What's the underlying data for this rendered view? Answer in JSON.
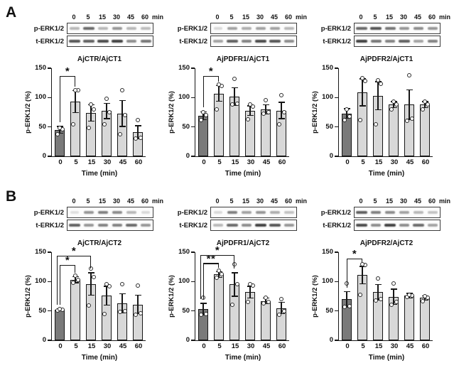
{
  "figure": {
    "panels": [
      {
        "label": "A",
        "figures": [
          {
            "chart_index": 0,
            "blot": {
              "header": [
                "0",
                "5",
                "15",
                "30",
                "45",
                "60"
              ],
              "unit": "min",
              "rows": [
                {
                  "label": "p-ERK1/2",
                  "bands": [
                    0.3,
                    0.65,
                    0.3,
                    0.45,
                    0.3,
                    0.28
                  ]
                },
                {
                  "label": "t-ERK1/2",
                  "bands": [
                    0.75,
                    0.7,
                    0.8,
                    0.85,
                    0.5,
                    0.6
                  ]
                }
              ]
            }
          },
          {
            "chart_index": 1,
            "blot": {
              "header": [
                "0",
                "5",
                "15",
                "30",
                "45",
                "60"
              ],
              "unit": "min",
              "rows": [
                {
                  "label": "p-ERK1/2",
                  "bands": [
                    0.15,
                    0.4,
                    0.35,
                    0.4,
                    0.4,
                    0.3
                  ]
                },
                {
                  "label": "t-ERK1/2",
                  "bands": [
                    0.4,
                    0.7,
                    0.55,
                    0.8,
                    0.75,
                    0.5
                  ]
                }
              ]
            }
          },
          {
            "chart_index": 2,
            "blot": {
              "header": [
                "0",
                "5",
                "15",
                "30",
                "45",
                "60"
              ],
              "unit": "min",
              "rows": [
                {
                  "label": "p-ERK1/2",
                  "bands": [
                    0.65,
                    0.75,
                    0.6,
                    0.45,
                    0.5,
                    0.45
                  ]
                },
                {
                  "label": "t-ERK1/2",
                  "bands": [
                    0.85,
                    0.6,
                    0.55,
                    0.7,
                    0.4,
                    0.55
                  ]
                }
              ]
            }
          }
        ]
      },
      {
        "label": "B",
        "figures": [
          {
            "chart_index": 3,
            "blot": {
              "header": [
                "0",
                "5",
                "15",
                "30",
                "45",
                "60"
              ],
              "unit": "min",
              "rows": [
                {
                  "label": "p-ERK1/2",
                  "bands": [
                    0.12,
                    0.45,
                    0.55,
                    0.5,
                    0.3,
                    0.15
                  ]
                },
                {
                  "label": "t-ERK1/2",
                  "bands": [
                    0.7,
                    0.45,
                    0.55,
                    0.55,
                    0.65,
                    0.45
                  ]
                }
              ]
            }
          },
          {
            "chart_index": 4,
            "blot": {
              "header": [
                "0",
                "5",
                "15",
                "30",
                "45",
                "60"
              ],
              "unit": "min",
              "rows": [
                {
                  "label": "p-ERK1/2",
                  "bands": [
                    0.15,
                    0.55,
                    0.4,
                    0.45,
                    0.35,
                    0.25
                  ]
                },
                {
                  "label": "t-ERK1/2",
                  "bands": [
                    0.3,
                    0.65,
                    0.5,
                    0.85,
                    0.75,
                    0.45
                  ]
                }
              ]
            }
          },
          {
            "chart_index": 5,
            "blot": {
              "header": [
                "0",
                "5",
                "15",
                "30",
                "45",
                "60"
              ],
              "unit": "min",
              "rows": [
                {
                  "label": "p-ERK1/2",
                  "bands": [
                    0.7,
                    0.55,
                    0.5,
                    0.4,
                    0.3,
                    0.25
                  ]
                },
                {
                  "label": "t-ERK1/2",
                  "bands": [
                    0.8,
                    0.5,
                    0.85,
                    0.5,
                    0.65,
                    0.4
                  ]
                }
              ]
            }
          }
        ]
      }
    ]
  },
  "style": {
    "dark_bar_color": "#7a7a7a",
    "light_bar_color": "#d8d8d8",
    "axis_color": "#161616",
    "band_color": "#1d1d1d"
  },
  "chart_data": [
    {
      "type": "bar",
      "title": "AjCTR/AjCT1",
      "categories": [
        "0",
        "5",
        "15",
        "30",
        "45",
        "60"
      ],
      "values": [
        45,
        93,
        74,
        77,
        73,
        41
      ],
      "errors": [
        6,
        19,
        14,
        13,
        22,
        11
      ],
      "points": [
        [
          38,
          46,
          48
        ],
        [
          54,
          112,
          113
        ],
        [
          48,
          80,
          88
        ],
        [
          55,
          75,
          98
        ],
        [
          38,
          70,
          112
        ],
        [
          30,
          32,
          62
        ]
      ],
      "significance": [
        {
          "from": 0,
          "to": 1,
          "label": "*",
          "y": 135
        }
      ],
      "ylabel": "p-ERK1/2 (%)",
      "xlabel": "Time (min)",
      "ylim": [
        0,
        150
      ],
      "yticks": [
        0,
        50,
        100,
        150
      ],
      "grid": false,
      "legend": false
    },
    {
      "type": "bar",
      "title": "AjPDFR1/AjCT1",
      "categories": [
        "0",
        "5",
        "15",
        "30",
        "45",
        "60"
      ],
      "values": [
        69,
        107,
        102,
        78,
        80,
        78
      ],
      "errors": [
        7,
        13,
        15,
        8,
        8,
        14
      ],
      "points": [
        [
          62,
          70,
          75
        ],
        [
          80,
          120,
          122
        ],
        [
          88,
          90,
          132
        ],
        [
          63,
          85,
          88
        ],
        [
          72,
          75,
          95
        ],
        [
          55,
          75,
          104
        ]
      ],
      "significance": [
        {
          "from": 0,
          "to": 1,
          "label": "*",
          "y": 135
        }
      ],
      "ylabel": "p-ERK1/2 (%)",
      "xlabel": "Time (min)",
      "ylim": [
        0,
        150
      ],
      "yticks": [
        0,
        50,
        100,
        150
      ],
      "grid": false,
      "legend": false
    },
    {
      "type": "bar",
      "title": "AjPDFR2/AjCT1",
      "categories": [
        "0",
        "5",
        "15",
        "30",
        "45",
        "60"
      ],
      "values": [
        73,
        109,
        103,
        88,
        88,
        88
      ],
      "errors": [
        8,
        23,
        24,
        5,
        25,
        5
      ],
      "points": [
        [
          62,
          68,
          80
        ],
        [
          62,
          128,
          133
        ],
        [
          55,
          123,
          130
        ],
        [
          80,
          88,
          93
        ],
        [
          60,
          64,
          138
        ],
        [
          80,
          88,
          93
        ]
      ],
      "significance": [],
      "ylabel": "p-ERK1/2 (%)",
      "xlabel": "Time (min)",
      "ylim": [
        0,
        150
      ],
      "yticks": [
        0,
        50,
        100,
        150
      ],
      "grid": false,
      "legend": false
    },
    {
      "type": "bar",
      "title": "AjCTR/AjCT2",
      "categories": [
        "0",
        "5",
        "15",
        "30",
        "45",
        "60"
      ],
      "values": [
        52,
        103,
        96,
        76,
        63,
        61
      ],
      "errors": [
        2,
        5,
        19,
        16,
        16,
        16
      ],
      "points": [
        [
          51,
          52,
          53
        ],
        [
          98,
          103,
          110
        ],
        [
          59,
          108,
          122
        ],
        [
          45,
          92,
          95
        ],
        [
          48,
          50,
          95
        ],
        [
          44,
          46,
          93
        ]
      ],
      "significance": [
        {
          "from": 0,
          "to": 1,
          "label": "*",
          "y": 127
        },
        {
          "from": 0,
          "to": 2,
          "label": "*",
          "y": 143
        }
      ],
      "ylabel": "p-ERK1/2 (%)",
      "xlabel": "Time (min)",
      "ylim": [
        0,
        150
      ],
      "yticks": [
        0,
        50,
        100,
        150
      ],
      "grid": false,
      "legend": false
    },
    {
      "type": "bar",
      "title": "AjPDFR1/AjCT2",
      "categories": [
        "0",
        "5",
        "15",
        "30",
        "45",
        "60"
      ],
      "values": [
        53,
        112,
        95,
        82,
        67,
        55
      ],
      "errors": [
        10,
        5,
        20,
        10,
        5,
        10
      ],
      "points": [
        [
          44,
          45,
          72
        ],
        [
          107,
          112,
          118
        ],
        [
          60,
          95,
          130
        ],
        [
          65,
          93,
          95
        ],
        [
          63,
          65,
          72
        ],
        [
          43,
          50,
          70
        ]
      ],
      "significance": [
        {
          "from": 0,
          "to": 1,
          "label": "**",
          "y": 130
        },
        {
          "from": 0,
          "to": 2,
          "label": "*",
          "y": 144
        }
      ],
      "ylabel": "p-ERK1/2 (%)",
      "xlabel": "Time (min)",
      "ylim": [
        0,
        150
      ],
      "yticks": [
        0,
        50,
        100,
        150
      ],
      "grid": false,
      "legend": false
    },
    {
      "type": "bar",
      "title": "AjPDFR2/AjCT2",
      "categories": [
        "0",
        "5",
        "15",
        "30",
        "45",
        "60"
      ],
      "values": [
        70,
        111,
        82,
        74,
        76,
        72
      ],
      "errors": [
        13,
        15,
        13,
        13,
        4,
        4
      ],
      "points": [
        [
          57,
          58,
          97
        ],
        [
          78,
          128,
          130
        ],
        [
          68,
          70,
          105
        ],
        [
          60,
          65,
          97
        ],
        [
          74,
          76,
          78
        ],
        [
          67,
          73,
          75
        ]
      ],
      "significance": [
        {
          "from": 0,
          "to": 1,
          "label": "*",
          "y": 138
        }
      ],
      "ylabel": "p-ERK1/2 (%)",
      "xlabel": "Time (min)",
      "ylim": [
        0,
        150
      ],
      "yticks": [
        0,
        50,
        100,
        150
      ],
      "grid": false,
      "legend": false
    }
  ]
}
